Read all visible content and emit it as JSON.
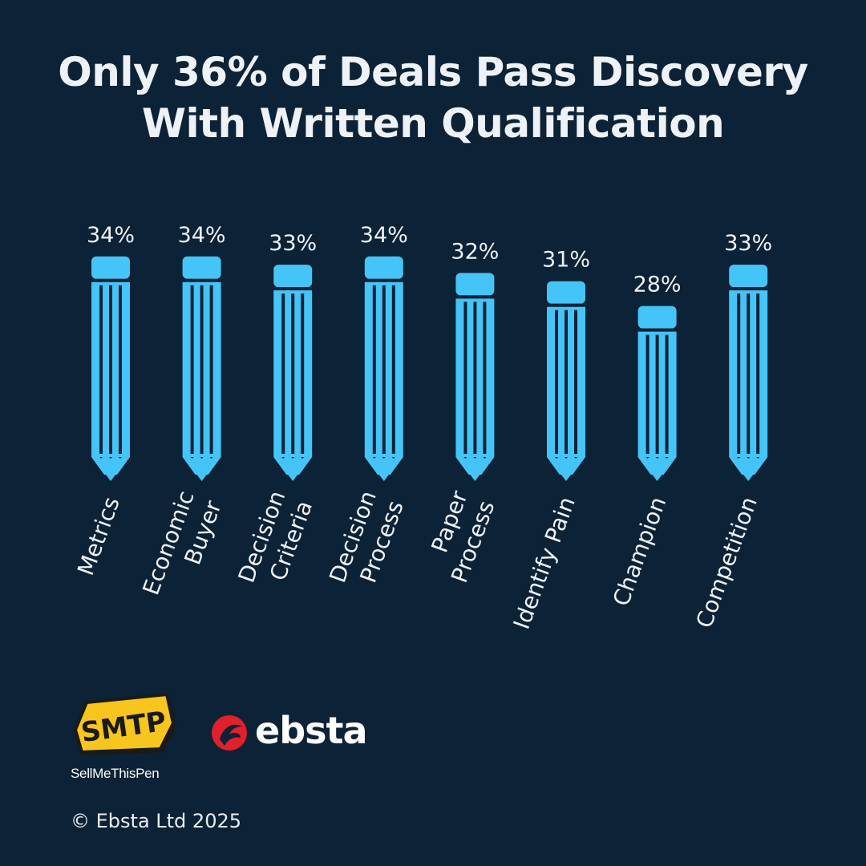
{
  "title": {
    "line1": "Only 36% of Deals Pass Discovery",
    "line2": "With Written Qualification"
  },
  "chart_data": {
    "type": "bar",
    "categories": [
      "Metrics",
      "Economic Buyer",
      "Decision Criteria",
      "Decision Process",
      "Paper Process",
      "Identify Pain",
      "Champion",
      "Competition"
    ],
    "category_lines": [
      [
        "Metrics"
      ],
      [
        "Economic",
        "Buyer"
      ],
      [
        "Decision",
        "Criteria"
      ],
      [
        "Decision",
        "Process"
      ],
      [
        "Paper",
        "Process"
      ],
      [
        "Identify Pain"
      ],
      [
        "Champion"
      ],
      [
        "Competition"
      ]
    ],
    "values": [
      34,
      34,
      33,
      34,
      32,
      31,
      28,
      33
    ],
    "value_labels": [
      "34%",
      "34%",
      "33%",
      "34%",
      "32%",
      "31%",
      "28%",
      "33%"
    ],
    "unit": "%",
    "bar_style": "pencil",
    "bar_color": "#45c4f7"
  },
  "logos": {
    "smtp_text": "SMTP",
    "smtp_caption": "SellMeThisPen",
    "ebsta_text": "ebsta",
    "ebsta_color": "#e0202a",
    "smtp_color": "#f7c51d"
  },
  "copyright": "© Ebsta Ltd 2025",
  "colors": {
    "background": "#0c2236",
    "text": "#eef2f7",
    "accent": "#45c4f7"
  }
}
